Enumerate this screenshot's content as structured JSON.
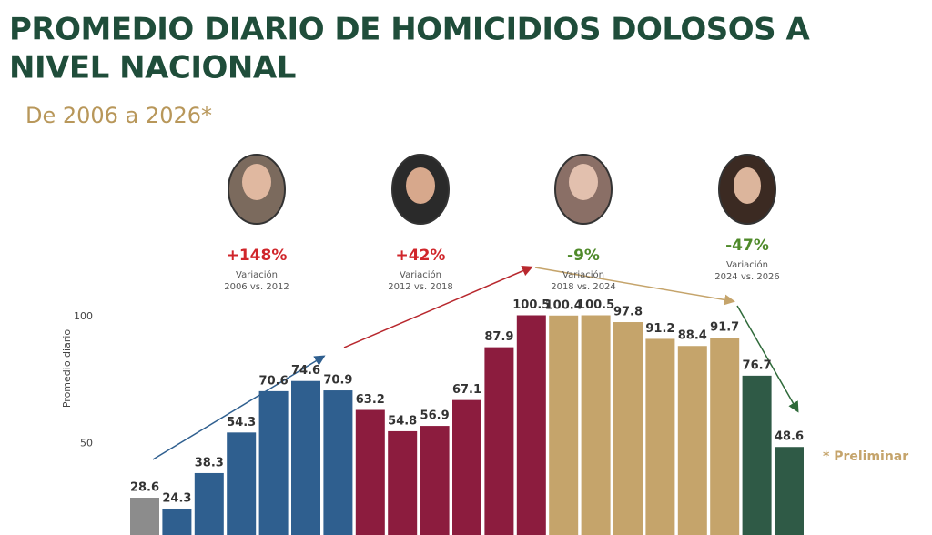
{
  "chart_data": {
    "type": "bar",
    "title_lines": [
      "PROMEDIO DIARIO DE HOMICIDIOS DOLOSOS A",
      "NIVEL NACIONAL"
    ],
    "subtitle": "De 2006 a 2026*",
    "y_label": "Promedio diario",
    "values": [
      28.6,
      24.3,
      38.3,
      54.3,
      70.6,
      74.6,
      70.9,
      63.2,
      54.8,
      56.9,
      67.1,
      87.9,
      100.5,
      100.4,
      100.5,
      97.8,
      91.2,
      88.4,
      91.7,
      76.7,
      48.6
    ],
    "colors": [
      "#8c8c8c",
      "#2f5f8f",
      "#2f5f8f",
      "#2f5f8f",
      "#2f5f8f",
      "#2f5f8f",
      "#2f5f8f",
      "#8c1c3e",
      "#8c1c3e",
      "#8c1c3e",
      "#8c1c3e",
      "#8c1c3e",
      "#8c1c3e",
      "#c5a46b",
      "#c5a46b",
      "#c5a46b",
      "#c5a46b",
      "#c5a46b",
      "#c5a46b",
      "#2f5a46",
      "#2f5a46"
    ],
    "ylim": [
      13.9,
      110
    ],
    "yticks": [
      50,
      100
    ],
    "annotations": [
      {
        "text": "+148%",
        "color": "#d0262b",
        "label": "Variación",
        "period": "2006 vs. 2012"
      },
      {
        "text": "+42%",
        "color": "#d0262b",
        "label": "Variación",
        "period": "2012 vs. 2018"
      },
      {
        "text": "-9%",
        "color": "#4f8a2a",
        "label": "Variación",
        "period": "2018 vs. 2024"
      },
      {
        "text": "-47%",
        "color": "#4f8a2a",
        "label": "Variación",
        "period": "2024 vs. 2026"
      }
    ],
    "note": "* Preliminar"
  }
}
